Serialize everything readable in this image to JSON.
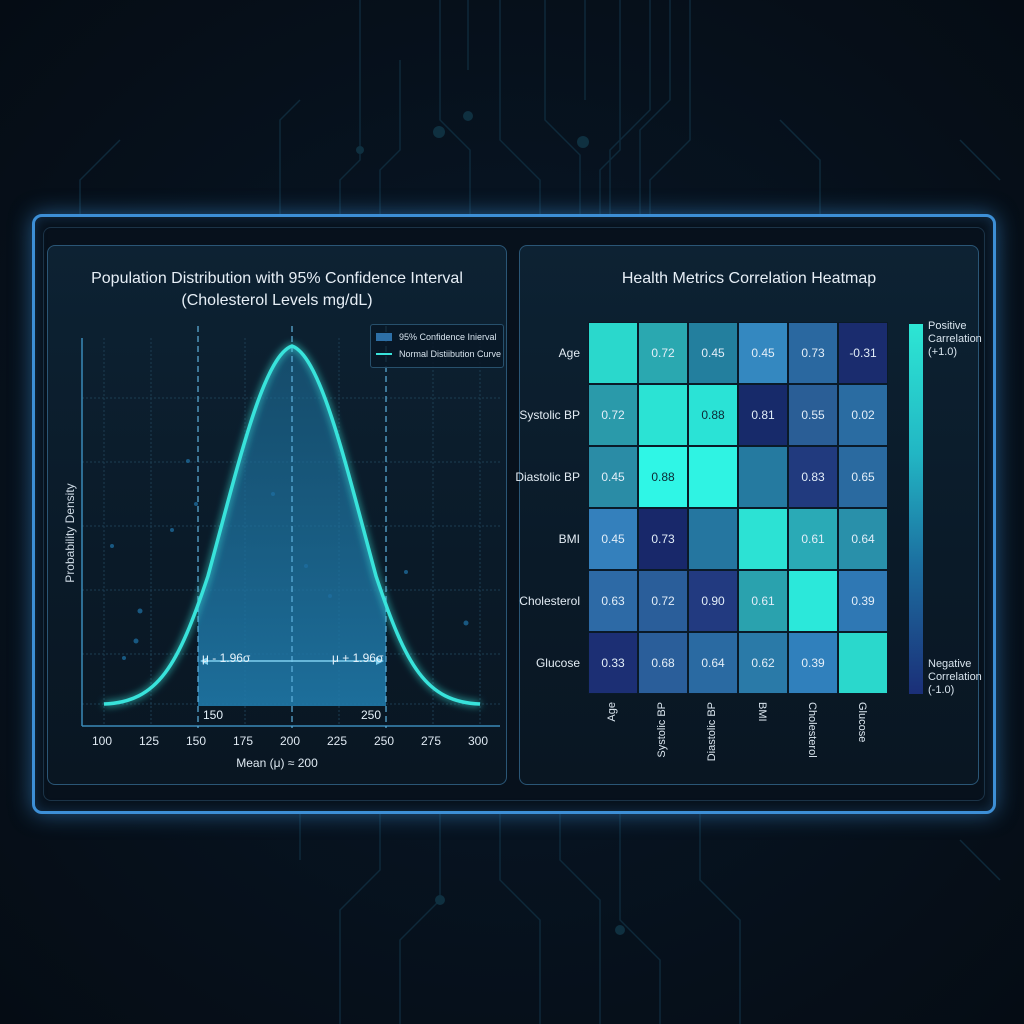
{
  "colors": {
    "background": "#060f18",
    "frame_border": "#3d8fd6",
    "curve": "#39e3db",
    "ci_fill": "#1f78a8",
    "heatmap_high": "#2de6d4",
    "heatmap_low": "#1b2f78"
  },
  "left_panel": {
    "title_line1": "Population Distribution with 95% Confidence Interval",
    "title_line2": "(Cholesterol Levels mg/dL)",
    "legend": {
      "ci_label": "95% Confidence Inierval",
      "curve_label": "Normal Distiibution Curve"
    },
    "ylabel": "Probability Density",
    "xlabel": "Mean (μ) ≈ 200",
    "x_ticks": [
      "100",
      "125",
      "150",
      "175",
      "200",
      "225",
      "250",
      "275",
      "300"
    ],
    "ci_lower_label": "μ - 1.96σ",
    "ci_upper_label": "μ + 1.96σ",
    "ci_lower_value": "150",
    "ci_upper_value": "250"
  },
  "right_panel": {
    "title": "Health Metrics Correlation Heatmap",
    "row_labels": [
      "Age",
      "Systolic BP",
      "Diastolic BP",
      "BMI",
      "Cholesterol",
      "Glucose"
    ],
    "col_labels": [
      "Age",
      "Systolic BP",
      "Diastolic BP",
      "BMI",
      "Cholesterol",
      "Glucose"
    ],
    "colorbar": {
      "top_label_1": "Positive",
      "top_label_2": "Carrelation",
      "top_label_3": "(+1.0)",
      "bottom_label_1": "Negative",
      "bottom_label_2": "Correlation",
      "bottom_label_3": "(-1.0)"
    }
  },
  "chart_data": [
    {
      "type": "area",
      "title": "Population Distribution with 95% Confidence Interval (Cholesterol Levels mg/dL)",
      "xlabel": "Mean (μ) ≈ 200",
      "ylabel": "Probability Density",
      "xlim": [
        100,
        300
      ],
      "x_ticks": [
        100,
        125,
        150,
        175,
        200,
        225,
        250,
        275,
        300
      ],
      "distribution": "normal",
      "mean": 200,
      "confidence_interval": {
        "level": 0.95,
        "lower": 150,
        "upper": 250,
        "lower_label": "μ - 1.96σ",
        "upper_label": "μ + 1.96σ"
      },
      "series": [
        {
          "name": "Normal Distribution Curve",
          "x": [
            100,
            125,
            150,
            175,
            200,
            225,
            250,
            275,
            300
          ],
          "values": [
            0.01,
            0.08,
            0.33,
            0.77,
            1.0,
            0.77,
            0.33,
            0.08,
            0.01
          ]
        },
        {
          "name": "95% Confidence Interval",
          "x_range": [
            150,
            250
          ]
        }
      ],
      "legend": [
        "95% Confidence Interval",
        "Normal Distribution Curve"
      ],
      "legend_position": "top-right",
      "grid": true
    },
    {
      "type": "heatmap",
      "title": "Health Metrics Correlation Heatmap",
      "rows": [
        "Age",
        "Systolic BP",
        "Diastolic BP",
        "BMI",
        "Cholesterol",
        "Glucose"
      ],
      "cols": [
        "Age",
        "Systolic BP",
        "Diastolic BP",
        "BMI",
        "Cholesterol",
        "Glucose"
      ],
      "values": [
        [
          "",
          "0.72",
          "0.45",
          "0.45",
          "0.73",
          "-0.31"
        ],
        [
          "0.72",
          "",
          "0.88",
          "0.81",
          "0.55",
          "0.02"
        ],
        [
          "0.45",
          "0.88",
          "",
          "",
          "0.83",
          "0.65"
        ],
        [
          "0.45",
          "0.73",
          "",
          "",
          "0.61",
          "0.64"
        ],
        [
          "0.63",
          "0.72",
          "0.90",
          "0.61",
          "",
          "0.39"
        ],
        [
          "0.33",
          "0.68",
          "0.64",
          "0.62",
          "0.39",
          ""
        ]
      ],
      "cell_colors": [
        [
          "#2ad8cc",
          "#2aa8b0",
          "#237f9e",
          "#3488c0",
          "#2a68a0",
          "#1a2c6e"
        ],
        [
          "#2a9aaa",
          "#2be3d4",
          "#2ae3d6",
          "#172a6a",
          "#2a5e96",
          "#2a6ca2"
        ],
        [
          "#2a8ca6",
          "#2ff6e6",
          "#2ff3e3",
          "#257aa0",
          "#213a7e",
          "#2a6aa0"
        ],
        [
          "#3480bc",
          "#18286a",
          "#2576a0",
          "#2ce2d4",
          "#2aaab6",
          "#2990aa"
        ],
        [
          "#2d6aa6",
          "#2a5e9a",
          "#223a80",
          "#2aa2ae",
          "#2be8da",
          "#2f78b4"
        ],
        [
          "#1c2f74",
          "#2a5e9a",
          "#2a6aa2",
          "#2a7aa8",
          "#3080bc",
          "#2ad8cc"
        ]
      ],
      "colorbar": {
        "max_label": "Positive Correlation (+1.0)",
        "min_label": "Negative Correlation (-1.0)",
        "range": [
          -1.0,
          1.0
        ]
      }
    }
  ]
}
